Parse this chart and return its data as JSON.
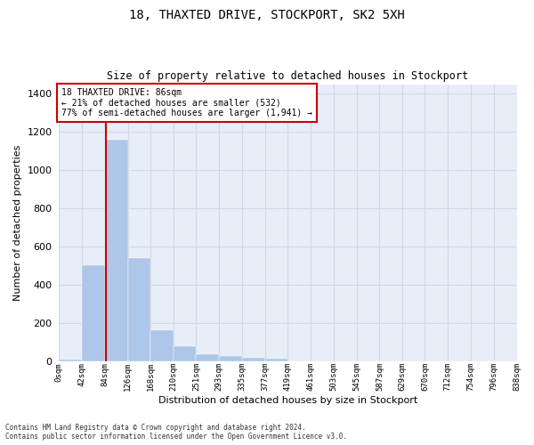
{
  "title_line1": "18, THAXTED DRIVE, STOCKPORT, SK2 5XH",
  "title_line2": "Size of property relative to detached houses in Stockport",
  "xlabel": "Distribution of detached houses by size in Stockport",
  "ylabel": "Number of detached properties",
  "footnote": "Contains HM Land Registry data © Crown copyright and database right 2024.\nContains public sector information licensed under the Open Government Licence v3.0.",
  "bin_edges": [
    0,
    42,
    84,
    126,
    168,
    210,
    251,
    293,
    335,
    377,
    419,
    461,
    503,
    545,
    587,
    629,
    670,
    712,
    754,
    796,
    838
  ],
  "bar_heights": [
    10,
    500,
    1160,
    540,
    160,
    80,
    35,
    28,
    18,
    12,
    0,
    0,
    0,
    0,
    0,
    0,
    0,
    0,
    0,
    0
  ],
  "bar_color": "#aec6e8",
  "grid_color": "#d0d8e8",
  "background_color": "#e8eef8",
  "figure_background": "#ffffff",
  "property_size": 86,
  "vline_color": "#cc0000",
  "annotation_text": "18 THAXTED DRIVE: 86sqm\n← 21% of detached houses are smaller (532)\n77% of semi-detached houses are larger (1,941) →",
  "annotation_box_color": "#ffffff",
  "annotation_box_edge": "#cc0000",
  "ylim": [
    0,
    1450
  ],
  "yticks": [
    0,
    200,
    400,
    600,
    800,
    1000,
    1200,
    1400
  ],
  "tick_labels": [
    "0sqm",
    "42sqm",
    "84sqm",
    "126sqm",
    "168sqm",
    "210sqm",
    "251sqm",
    "293sqm",
    "335sqm",
    "377sqm",
    "419sqm",
    "461sqm",
    "503sqm",
    "545sqm",
    "587sqm",
    "629sqm",
    "670sqm",
    "712sqm",
    "754sqm",
    "796sqm",
    "838sqm"
  ]
}
